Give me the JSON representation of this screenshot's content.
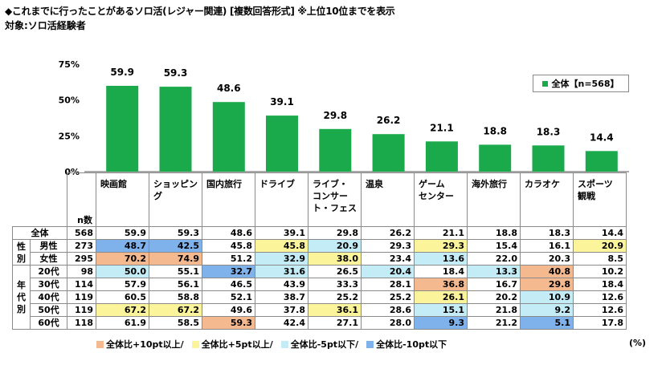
{
  "title": "◆これまでに行ったことがあるソロ活(レジャー関連) [複数回答形式] ※上位10位までを表示",
  "subtitle": "対象:ソロ活経験者",
  "legend_label": "全体【n=568】",
  "n_header": "n数",
  "unit_label": "(%)",
  "colors": {
    "bar": "#1aaa4b",
    "hi10": "#f5b98f",
    "hi5": "#fbf49a",
    "lo5": "#c4ecf7",
    "lo10": "#7fb2ea"
  },
  "highlight_legend": [
    "全体比+10pt以上/",
    "全体比+5pt以上/",
    "全体比-5pt以下/",
    "全体比-10pt以下"
  ],
  "chart_data": {
    "type": "bar",
    "categories": [
      "映画館",
      "ショッピング",
      "国内旅行",
      "ドライブ",
      "ライブ・コンサート・フェス",
      "温泉",
      "ゲームセンター",
      "海外旅行",
      "カラオケ",
      "スポーツ観戦"
    ],
    "category_display": [
      "映画館",
      "ショッピング",
      "国内旅行",
      "ドライブ",
      "ライブ・\nコンサー\nト・フェス",
      "温泉",
      "ゲーム\nセンター",
      "海外旅行",
      "カラオケ",
      "スポーツ\n観戦"
    ],
    "series": [
      {
        "name": "全体【n=568】",
        "values": [
          59.9,
          59.3,
          48.6,
          39.1,
          29.8,
          26.2,
          21.1,
          18.8,
          18.3,
          14.4
        ]
      }
    ],
    "yticks": [
      "0%",
      "25%",
      "50%",
      "75%"
    ],
    "ylim": [
      0,
      75
    ],
    "ylabel": "",
    "xlabel": ""
  },
  "table": {
    "rows": [
      {
        "group": "",
        "label": "全体",
        "n": "568",
        "values": [
          "59.9",
          "59.3",
          "48.6",
          "39.1",
          "29.8",
          "26.2",
          "21.1",
          "18.8",
          "18.3",
          "14.4"
        ],
        "hl": [
          "",
          "",
          "",
          "",
          "",
          "",
          "",
          "",
          "",
          ""
        ]
      },
      {
        "group": "性別",
        "label": "男性",
        "n": "273",
        "values": [
          "48.7",
          "42.5",
          "45.8",
          "45.8",
          "20.9",
          "29.3",
          "29.3",
          "15.4",
          "16.1",
          "20.9"
        ],
        "hl": [
          "lo10",
          "lo10",
          "",
          "hi5",
          "lo5",
          "",
          "hi5",
          "",
          "",
          "hi5"
        ]
      },
      {
        "group": "",
        "label": "女性",
        "n": "295",
        "values": [
          "70.2",
          "74.9",
          "51.2",
          "32.9",
          "38.0",
          "23.4",
          "13.6",
          "22.0",
          "20.3",
          "8.5"
        ],
        "hl": [
          "hi10",
          "hi10",
          "",
          "lo5",
          "hi5",
          "",
          "lo5",
          "",
          "",
          ""
        ]
      },
      {
        "group": "年代別",
        "label": "20代",
        "n": "98",
        "values": [
          "50.0",
          "55.1",
          "32.7",
          "31.6",
          "26.5",
          "20.4",
          "18.4",
          "13.3",
          "40.8",
          "10.2"
        ],
        "hl": [
          "lo5",
          "",
          "lo10",
          "lo5",
          "",
          "lo5",
          "",
          "lo5",
          "hi10",
          ""
        ]
      },
      {
        "group": "",
        "label": "30代",
        "n": "114",
        "values": [
          "57.9",
          "56.1",
          "46.5",
          "43.9",
          "33.3",
          "28.1",
          "36.8",
          "16.7",
          "29.8",
          "18.4"
        ],
        "hl": [
          "",
          "",
          "",
          "",
          "",
          "",
          "hi10",
          "",
          "hi10",
          ""
        ]
      },
      {
        "group": "",
        "label": "40代",
        "n": "119",
        "values": [
          "60.5",
          "58.8",
          "52.1",
          "38.7",
          "25.2",
          "25.2",
          "26.1",
          "20.2",
          "10.9",
          "12.6"
        ],
        "hl": [
          "",
          "",
          "",
          "",
          "",
          "",
          "hi5",
          "",
          "lo5",
          ""
        ]
      },
      {
        "group": "",
        "label": "50代",
        "n": "119",
        "values": [
          "67.2",
          "67.2",
          "49.6",
          "37.8",
          "36.1",
          "28.6",
          "15.1",
          "21.8",
          "9.2",
          "12.6"
        ],
        "hl": [
          "hi5",
          "hi5",
          "",
          "",
          "hi5",
          "",
          "lo5",
          "",
          "lo5",
          ""
        ]
      },
      {
        "group": "",
        "label": "60代",
        "n": "118",
        "values": [
          "61.9",
          "58.5",
          "59.3",
          "42.4",
          "27.1",
          "28.0",
          "9.3",
          "21.2",
          "5.1",
          "17.8"
        ],
        "hl": [
          "",
          "",
          "hi10",
          "",
          "",
          "",
          "lo10",
          "",
          "lo10",
          ""
        ]
      }
    ]
  }
}
